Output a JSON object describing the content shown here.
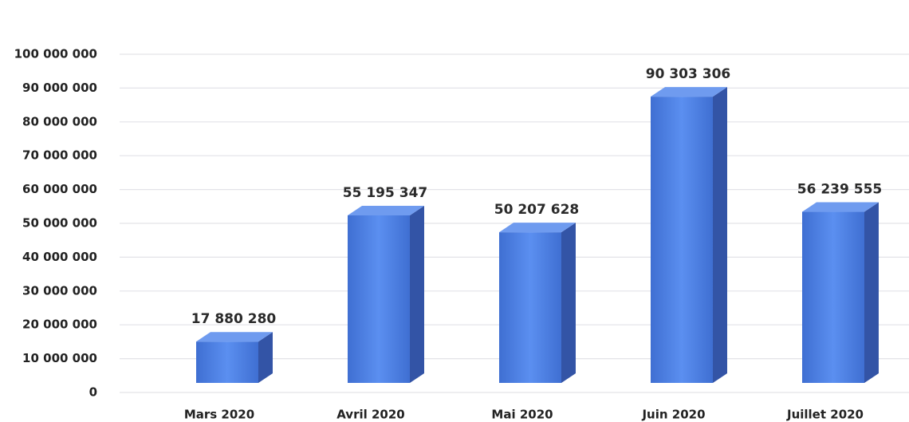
{
  "chart_data": {
    "type": "bar",
    "categories": [
      "Mars 2020",
      "Avril 2020",
      "Mai 2020",
      "Juin 2020",
      "Juillet 2020"
    ],
    "values": [
      17880280,
      55195347,
      50207628,
      90303306,
      56239555
    ],
    "value_labels": [
      "17 880 280",
      "55 195 347",
      "50 207 628",
      "90 303 306",
      "56 239 555"
    ],
    "color": "#4a7ee0",
    "ylim": [
      0,
      100000000
    ],
    "yticks": [
      {
        "value": 0,
        "label": "0"
      },
      {
        "value": 10000000,
        "label": "10 000 000"
      },
      {
        "value": 20000000,
        "label": "20 000 000"
      },
      {
        "value": 30000000,
        "label": "30 000 000"
      },
      {
        "value": 40000000,
        "label": "40 000 000"
      },
      {
        "value": 50000000,
        "label": "50 000 000"
      },
      {
        "value": 60000000,
        "label": "60 000 000"
      },
      {
        "value": 70000000,
        "label": "70 000 000"
      },
      {
        "value": 80000000,
        "label": "80 000 000"
      },
      {
        "value": 90000000,
        "label": "90 000 000"
      },
      {
        "value": 100000000,
        "label": "100 000 000"
      }
    ],
    "grid": true
  }
}
